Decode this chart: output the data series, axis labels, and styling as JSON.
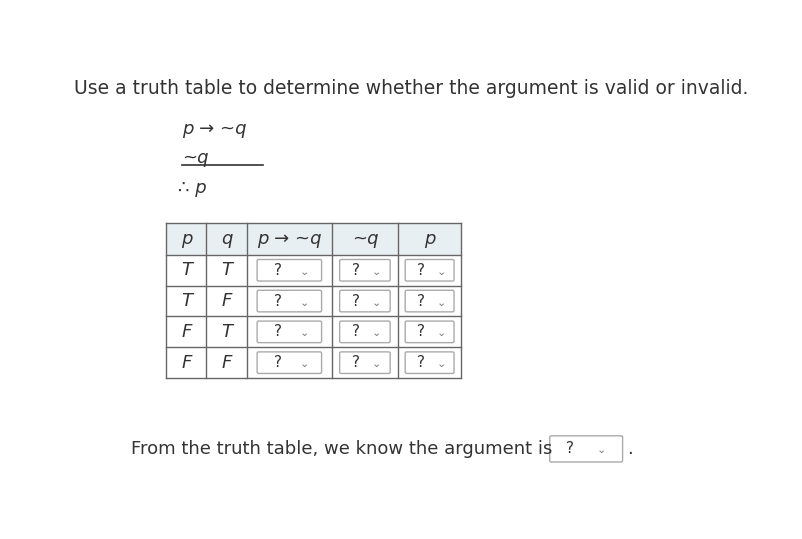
{
  "title": "Use a truth table to determine whether the argument is valid or invalid.",
  "title_fontsize": 13.5,
  "argument_lines": [
    "p → ~q",
    "~q",
    "∴ p"
  ],
  "table_headers": [
    "p",
    "q",
    "p → ~q",
    "~q",
    "p"
  ],
  "rows": [
    [
      "T",
      "T"
    ],
    [
      "T",
      "F"
    ],
    [
      "F",
      "T"
    ],
    [
      "F",
      "F"
    ]
  ],
  "footer_text": "From the truth table, we know the argument is",
  "bg_color": "#ffffff",
  "header_bg": "#e8eff3",
  "cell_bg": "#ffffff",
  "border_color": "#666666",
  "text_color": "#333333",
  "dropdown_border": "#aaaaaa",
  "font_family": "DejaVu Sans"
}
